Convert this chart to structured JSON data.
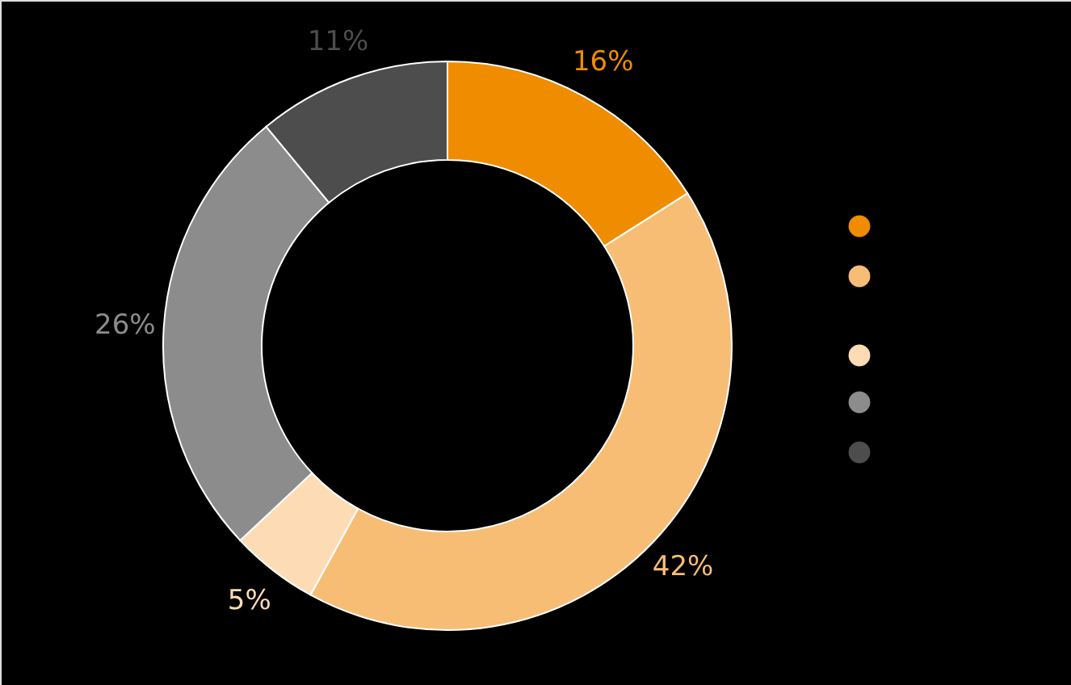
{
  "chart_data": {
    "type": "donut",
    "categories": [
      null,
      null,
      null,
      null,
      null
    ],
    "values": [
      16,
      42,
      5,
      26,
      11
    ],
    "colors": [
      "#f08c00",
      "#f7bd75",
      "#fddcb5",
      "#8c8c8c",
      "#4d4d4d"
    ],
    "value_labels": [
      "16%",
      "42%",
      "5%",
      "26%",
      "11%"
    ]
  }
}
